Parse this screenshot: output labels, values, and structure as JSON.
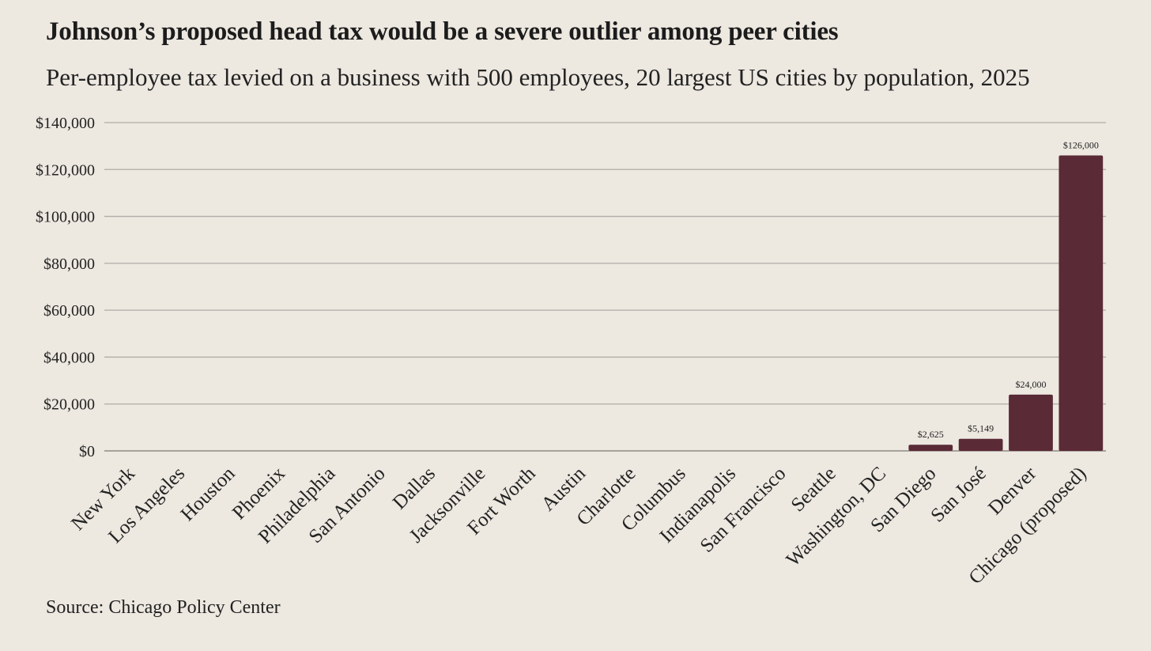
{
  "chart_data": {
    "type": "bar",
    "title": "Johnson’s proposed head tax would be a severe outlier among peer cities",
    "subtitle": "Per-employee tax levied on a business with 500 employees, 20 largest US cities by population, 2025",
    "source": "Source: Chicago Policy Center",
    "xlabel": "",
    "ylabel": "",
    "ylim": [
      0,
      140000
    ],
    "yticks": [
      0,
      20000,
      40000,
      60000,
      80000,
      100000,
      120000,
      140000
    ],
    "ytick_labels": [
      "$0",
      "$20,000",
      "$40,000",
      "$60,000",
      "$80,000",
      "$100,000",
      "$120,000",
      "$140,000"
    ],
    "grid": true,
    "bar_color": "#5a2a36",
    "categories": [
      "New York",
      "Los Angeles",
      "Houston",
      "Phoenix",
      "Philadelphia",
      "San Antonio",
      "Dallas",
      "Jacksonville",
      "Fort Worth",
      "Austin",
      "Charlotte",
      "Columbus",
      "Indianapolis",
      "San Francisco",
      "Seattle",
      "Washington, DC",
      "San Diego",
      "San José",
      "Denver",
      "Chicago (proposed)"
    ],
    "values": [
      0,
      0,
      0,
      0,
      0,
      0,
      0,
      0,
      0,
      0,
      0,
      0,
      0,
      0,
      0,
      0,
      2625,
      5149,
      24000,
      126000
    ],
    "data_labels": [
      "",
      "",
      "",
      "",
      "",
      "",
      "",
      "",
      "",
      "",
      "",
      "",
      "",
      "",
      "",
      "",
      "$2,625",
      "$5,149",
      "$24,000",
      "$126,000"
    ]
  }
}
